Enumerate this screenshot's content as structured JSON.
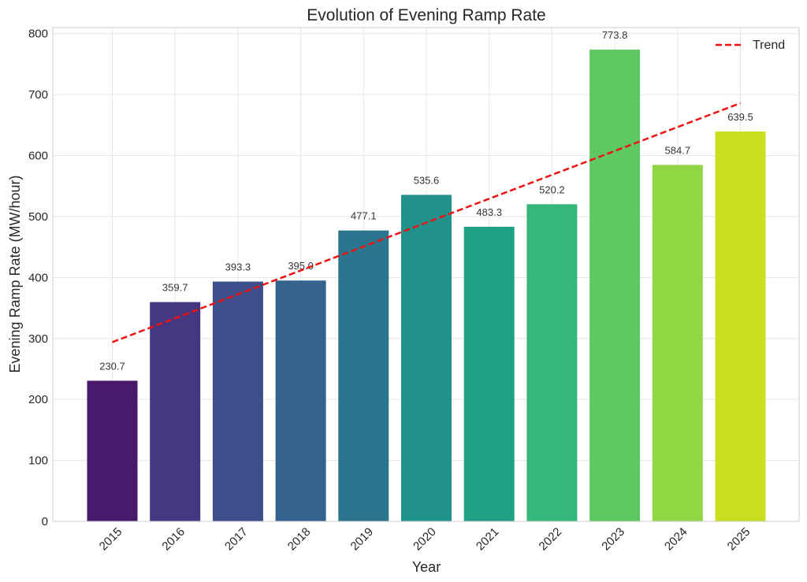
{
  "chart_data": {
    "type": "bar",
    "title": "Evolution of Evening Ramp Rate",
    "xlabel": "Year",
    "ylabel": "Evening Ramp Rate (MW/hour)",
    "categories": [
      "2015",
      "2016",
      "2017",
      "2018",
      "2019",
      "2020",
      "2021",
      "2022",
      "2023",
      "2024",
      "2025"
    ],
    "values": [
      230.7,
      359.7,
      393.3,
      395.0,
      477.1,
      535.6,
      483.3,
      520.2,
      773.8,
      584.7,
      639.5
    ],
    "data_labels": [
      "230.7",
      "359.7",
      "393.3",
      "395.0",
      "477.1",
      "535.6",
      "483.3",
      "520.2",
      "773.8",
      "584.7",
      "639.5"
    ],
    "bar_colors": [
      "#481a6c",
      "#453781",
      "#3d4e8a",
      "#33638d",
      "#2a768e",
      "#21918c",
      "#1fa187",
      "#35b779",
      "#5ec962",
      "#90d743",
      "#c8e020"
    ],
    "ylim": [
      0,
      810
    ],
    "yticks": [
      0,
      100,
      200,
      300,
      400,
      500,
      600,
      700,
      800
    ],
    "grid": true,
    "trend": {
      "name": "Trend",
      "color": "#ee1111",
      "style": "dashed",
      "start": 294.0,
      "end": 686.0
    },
    "legend": {
      "position": "top-right"
    }
  }
}
